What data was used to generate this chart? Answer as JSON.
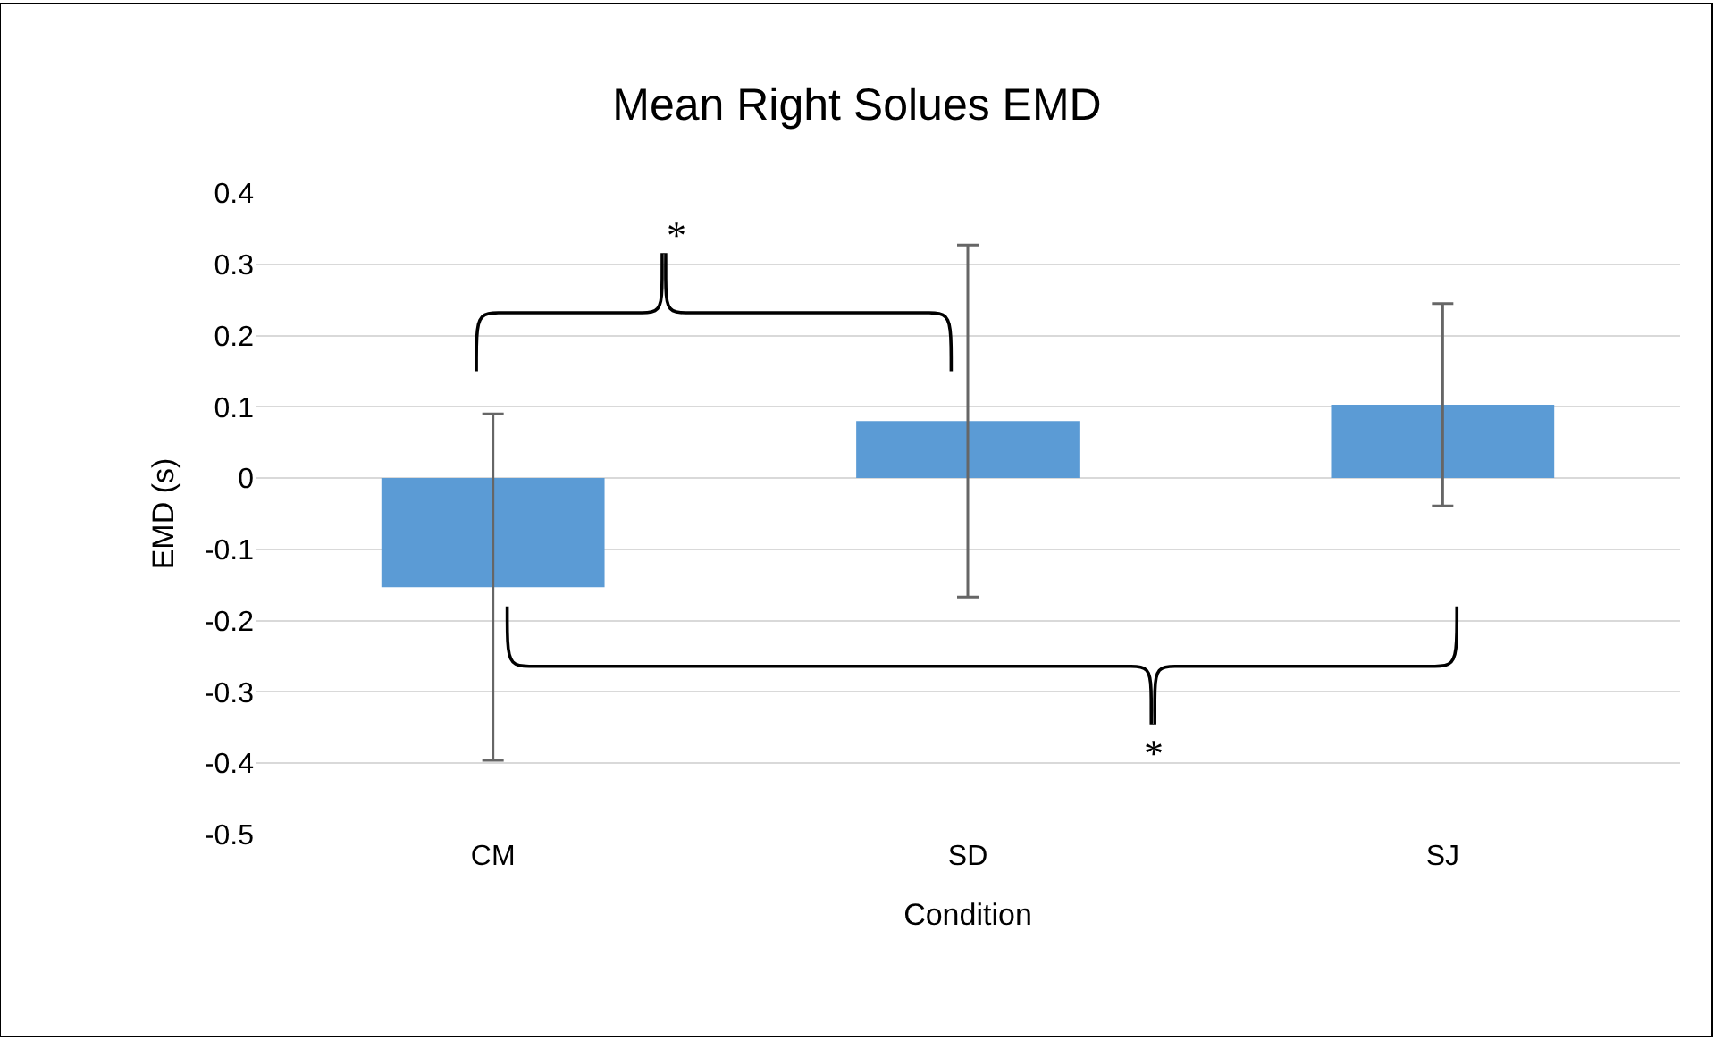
{
  "chart_data": {
    "type": "bar",
    "title": "Mean Right Solues EMD",
    "xlabel": "Condition",
    "ylabel": "EMD (s)",
    "categories": [
      "CM",
      "SD",
      "SJ"
    ],
    "series": [
      {
        "color": "#5b9bd5",
        "values": [
          -0.153,
          0.08,
          0.103
        ],
        "errors": [
          0.243,
          0.247,
          0.142
        ]
      }
    ],
    "ylim": [
      -0.5,
      0.4
    ],
    "yticks": [
      {
        "value": -0.5,
        "label": "-0.5"
      },
      {
        "value": -0.4,
        "label": "-0.4"
      },
      {
        "value": -0.3,
        "label": "-0.3"
      },
      {
        "value": -0.2,
        "label": "-0.2"
      },
      {
        "value": -0.1,
        "label": "-0.1"
      },
      0,
      {
        "value": 0.1,
        "label": "0.1"
      },
      {
        "value": 0.2,
        "label": "0.2"
      },
      {
        "value": 0.3,
        "label": "0.3"
      },
      {
        "value": 0.4,
        "label": "0.4"
      }
    ],
    "grid": "y",
    "annotations": [
      "*",
      "*"
    ]
  }
}
